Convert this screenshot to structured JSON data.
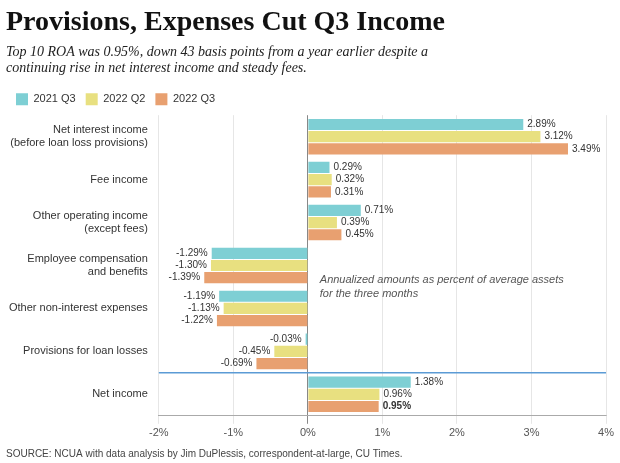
{
  "chart_data": {
    "type": "bar",
    "orientation": "horizontal",
    "title": "Provisions, Expenses Cut Q3 Income",
    "subtitle": "Top 10 ROA was 0.95%, down 43 basis points from a year earlier despite a\ncontinuing rise in net interest income and steady fees.",
    "annotation": "Annualized amounts as percent of average assets\nfor the three months",
    "source": "SOURCE: NCUA with data analysis by Jim DuPlessis, correspondent-at-large, CU Times.",
    "categories": [
      "Net interest income\n(before loan loss provisions)",
      "Fee income",
      "Other operating income\n(except fees)",
      "Employee compensation\nand benefits",
      "Other non-interest expenses",
      "Provisions for loan losses",
      "Net income"
    ],
    "series": [
      {
        "name": "2021 Q3",
        "color": "#7ecfd4",
        "values": [
          2.89,
          0.29,
          0.71,
          -1.29,
          -1.19,
          -0.03,
          1.38
        ],
        "value_labels": [
          "2.89%",
          "0.29%",
          "0.71%",
          "-1.29%",
          "-1.19%",
          "-0.03%",
          "1.38%"
        ]
      },
      {
        "name": "2022 Q2",
        "color": "#e8e080",
        "values": [
          3.12,
          0.32,
          0.39,
          -1.3,
          -1.13,
          -0.45,
          0.96
        ],
        "value_labels": [
          "3.12%",
          "0.32%",
          "0.39%",
          "-1.30%",
          "-1.13%",
          "-0.45%",
          "0.96%"
        ]
      },
      {
        "name": "2022 Q3",
        "color": "#e8a070",
        "values": [
          3.49,
          0.31,
          0.45,
          -1.39,
          -1.22,
          -0.69,
          0.95
        ],
        "value_labels": [
          "3.49%",
          "0.31%",
          "0.45%",
          "-1.39%",
          "-1.22%",
          "-0.69%",
          "0.95%"
        ]
      }
    ],
    "xlim": [
      -2,
      4
    ],
    "xticks": [
      {
        "value": -2,
        "label": "-2%"
      },
      {
        "value": -1,
        "label": "-1%"
      },
      {
        "value": 0,
        "label": "0%"
      },
      {
        "value": 1,
        "label": "1%"
      },
      {
        "value": 2,
        "label": "2%"
      },
      {
        "value": 3,
        "label": "3%"
      },
      {
        "value": 4,
        "label": "4%"
      }
    ],
    "grid": true,
    "legend": "upper left",
    "data_labels": true
  }
}
